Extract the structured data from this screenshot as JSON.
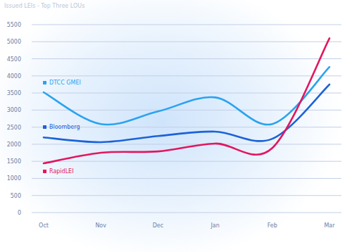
{
  "chart_data": {
    "type": "line",
    "title": "Issued LEIs - Top Three LOUs",
    "categories": [
      "Oct",
      "Nov",
      "Dec",
      "Jan",
      "Feb",
      "Mar"
    ],
    "series": [
      {
        "name": "DTCC GMEI",
        "color": "#2aa3f0",
        "values": [
          3520,
          2590,
          2960,
          3370,
          2590,
          4260
        ]
      },
      {
        "name": "Bloomberg",
        "color": "#1a63d8",
        "values": [
          2200,
          2060,
          2240,
          2370,
          2160,
          3750
        ]
      },
      {
        "name": "RapidLEI",
        "color": "#e3165e",
        "values": [
          1440,
          1750,
          1790,
          2020,
          1890,
          5100
        ]
      }
    ],
    "ylim": [
      0,
      5500
    ],
    "yticks": [
      0,
      500,
      1000,
      1500,
      2000,
      2500,
      3000,
      3500,
      4000,
      4500,
      5000,
      5500
    ],
    "grid": true,
    "legend": "left"
  }
}
